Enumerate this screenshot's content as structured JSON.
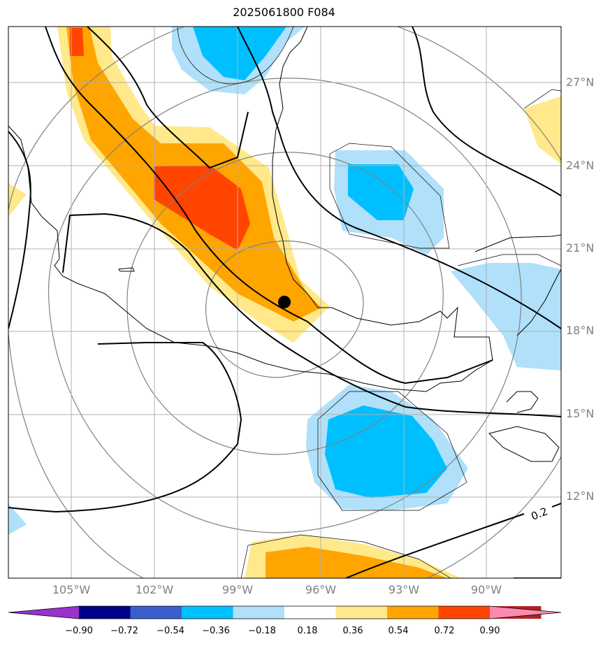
{
  "title": "2025061800 F084",
  "lat_labels": [
    "27°N",
    "24°N",
    "21°N",
    "18°N",
    "15°N",
    "12°N"
  ],
  "lon_labels": [
    "105°W",
    "102°W",
    "99°W",
    "96°W",
    "93°W",
    "90°W"
  ],
  "contour_label": "0.2",
  "colorbar": {
    "ticks": [
      "−0.90",
      "−0.72",
      "−0.54",
      "−0.36",
      "−0.18",
      "0.18",
      "0.36",
      "0.54",
      "0.72",
      "0.90"
    ],
    "colors": [
      "#9932cc",
      "#00008b",
      "#3a5fcd",
      "#00bfff",
      "#b0e0fa",
      "#ffffff",
      "#ffe98a",
      "#ffa500",
      "#ff4500",
      "#b22222",
      "#ff88b0"
    ]
  },
  "marker": {
    "lat": 19.1,
    "lon": -97.2
  }
}
